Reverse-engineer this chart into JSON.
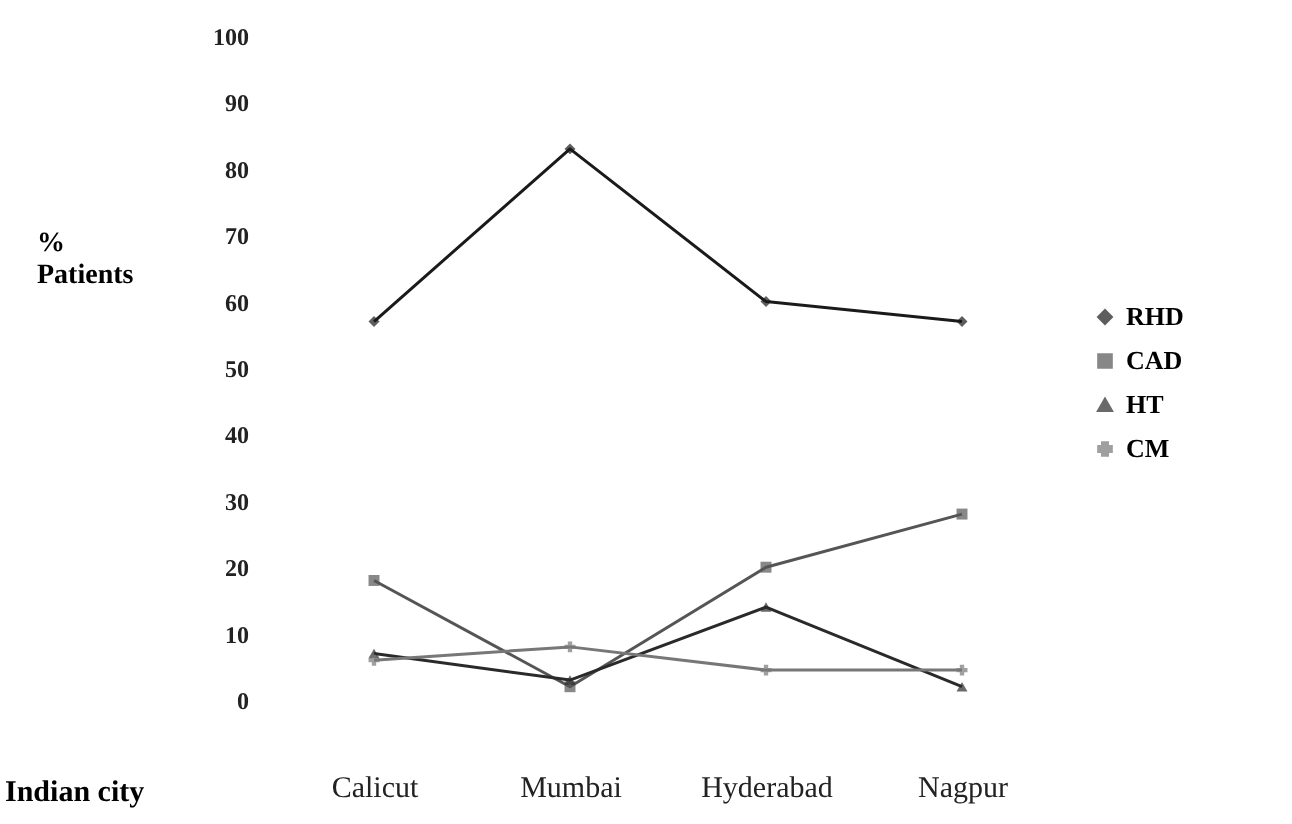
{
  "chart_data": {
    "type": "line",
    "xlabel": "Indian city",
    "ylabel": "% Patients",
    "categories": [
      "Calicut",
      "Mumbai",
      "Hyderabad",
      "Nagpur"
    ],
    "series": [
      {
        "name": "RHD",
        "color": "#1a1a1a",
        "marker": "diamond",
        "values": [
          57,
          83,
          60,
          57
        ]
      },
      {
        "name": "CAD",
        "color": "#555555",
        "marker": "square",
        "values": [
          18,
          2,
          20,
          28
        ]
      },
      {
        "name": "HT",
        "color": "#2a2a2a",
        "marker": "triangle",
        "values": [
          7,
          3,
          14,
          2
        ]
      },
      {
        "name": "CM",
        "color": "#777777",
        "marker": "cross",
        "values": [
          6,
          8,
          4.5,
          4.5
        ]
      }
    ],
    "ylim": [
      0,
      100
    ],
    "yticks": [
      0,
      10,
      20,
      30,
      40,
      50,
      60,
      70,
      80,
      90,
      100
    ],
    "grid": false,
    "legend": "right"
  }
}
